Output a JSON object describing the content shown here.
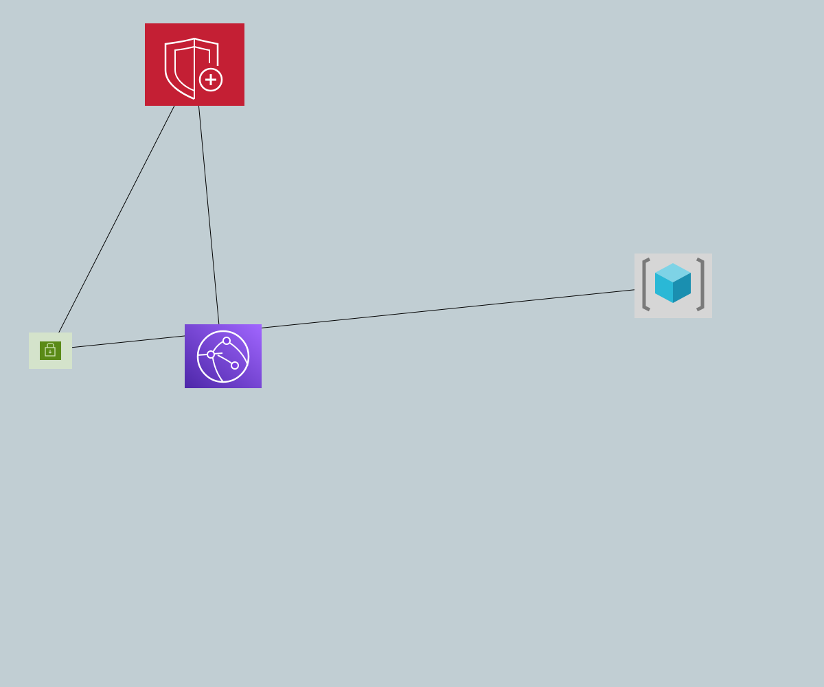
{
  "diagram": {
    "background": "#c1ced3",
    "nodes": [
      {
        "id": "shield",
        "icon": "shield-plus-icon",
        "color": "#c41f34"
      },
      {
        "id": "lock",
        "icon": "lock-icon",
        "color": "#d4e3cb",
        "accent": "#5a8a16"
      },
      {
        "id": "globe",
        "icon": "globe-network-icon",
        "color": "#6b2fd6"
      },
      {
        "id": "cube",
        "icon": "bracket-cube-icon",
        "color": "#d6d6d6",
        "accent": "#2ab8d6"
      }
    ],
    "edges": [
      {
        "from": "shield",
        "to": "lock"
      },
      {
        "from": "globe",
        "to": "shield"
      },
      {
        "from": "lock",
        "to": "cube"
      }
    ]
  }
}
